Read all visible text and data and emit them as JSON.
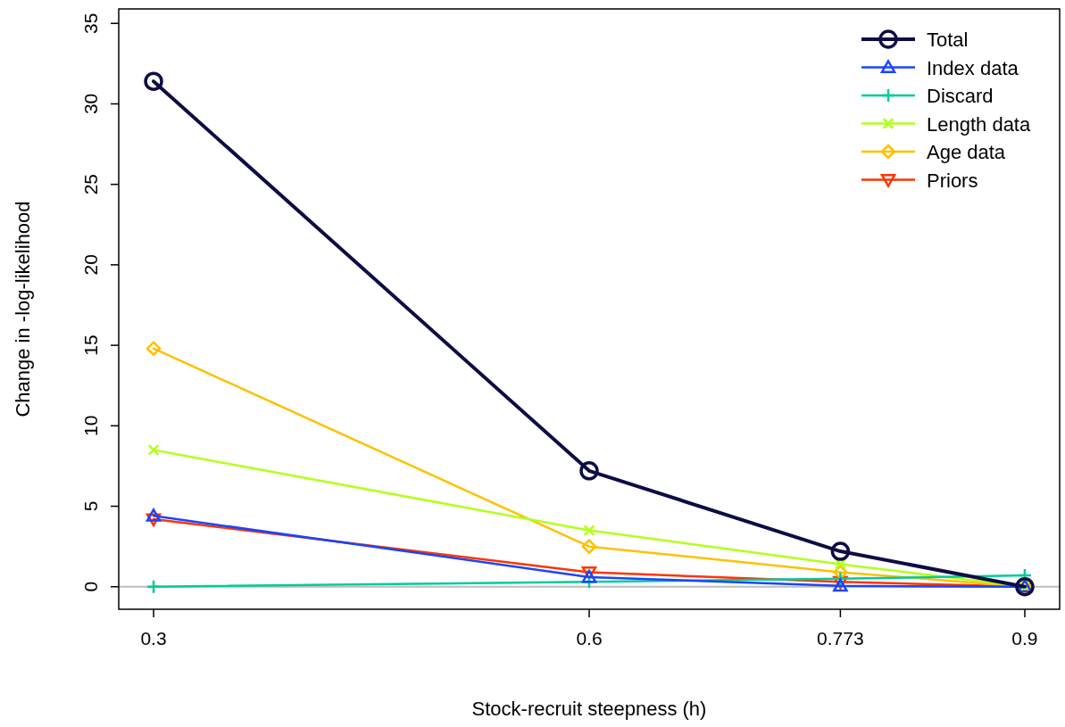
{
  "chart_data": {
    "type": "line",
    "xlabel": "Stock-recruit steepness (h)",
    "ylabel": "Change in -log-likelihood",
    "x": [
      0.3,
      0.6,
      0.773,
      0.9
    ],
    "xlim": [
      0.276,
      0.924
    ],
    "xticks": [
      0.3,
      0.6,
      0.773,
      0.9
    ],
    "ylim": [
      -1.4,
      35.9
    ],
    "yticks": [
      0,
      5,
      10,
      15,
      20,
      25,
      30,
      35
    ],
    "grid": false,
    "legend": "top right",
    "line_style": "solid",
    "ref_lines": [
      {
        "axis": "y",
        "value": 0,
        "color": "#bebebe"
      }
    ],
    "series": [
      {
        "name": "Total",
        "color": "#0d0d45",
        "marker": "circle",
        "values": [
          31.4,
          7.2,
          2.2,
          0
        ]
      },
      {
        "name": "Index data",
        "color": "#1a44ff",
        "marker": "triangle",
        "values": [
          4.4,
          0.6,
          0.05,
          0
        ]
      },
      {
        "name": "Discard",
        "color": "#00cc99",
        "marker": "plus",
        "values": [
          0,
          0.3,
          0.5,
          0.7
        ]
      },
      {
        "name": "Length data",
        "color": "#b3ff1a",
        "marker": "cross",
        "values": [
          8.5,
          3.5,
          1.4,
          0
        ]
      },
      {
        "name": "Age data",
        "color": "#ffc000",
        "marker": "diamond",
        "values": [
          14.8,
          2.5,
          0.9,
          0
        ]
      },
      {
        "name": "Priors",
        "color": "#ff3300",
        "marker": "triangle-down",
        "values": [
          4.2,
          0.9,
          0.3,
          0
        ]
      }
    ]
  }
}
